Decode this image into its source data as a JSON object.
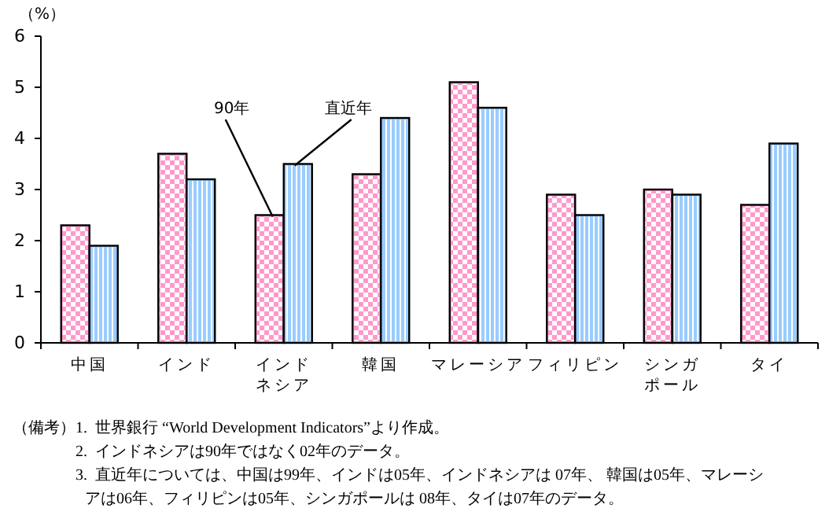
{
  "chart_data": {
    "type": "bar",
    "ylabel": "（%）",
    "categories": [
      "中国",
      "インド",
      "インドネシア",
      "韓国",
      "マレーシア",
      "フィリピン",
      "シンガポール",
      "タイ"
    ],
    "series": [
      {
        "name": "90年",
        "color": "#ff99cc",
        "values": [
          2.3,
          3.7,
          2.5,
          3.3,
          5.1,
          2.9,
          3.0,
          2.7
        ]
      },
      {
        "name": "直近年",
        "color": "#99ccff",
        "values": [
          1.9,
          3.2,
          3.5,
          4.4,
          4.6,
          2.5,
          2.9,
          3.9
        ]
      }
    ],
    "ylim": [
      0,
      6
    ],
    "yticks": [
      0,
      1,
      2,
      3,
      4,
      5,
      6
    ],
    "grid": false,
    "legend": false,
    "annotations": [
      "（備考）1.  世界銀行 “World Development Indicators”より作成。",
      "2.  インドネシアは90年ではなく02年のデータ。",
      "3.  直近年については、中国は99年、インドは05年、インドネシアは 07年、 韓国は05年、マレーシアは06年、フィリピンは05年、シンガポールは 08年、タイは07年のデータ。"
    ]
  }
}
